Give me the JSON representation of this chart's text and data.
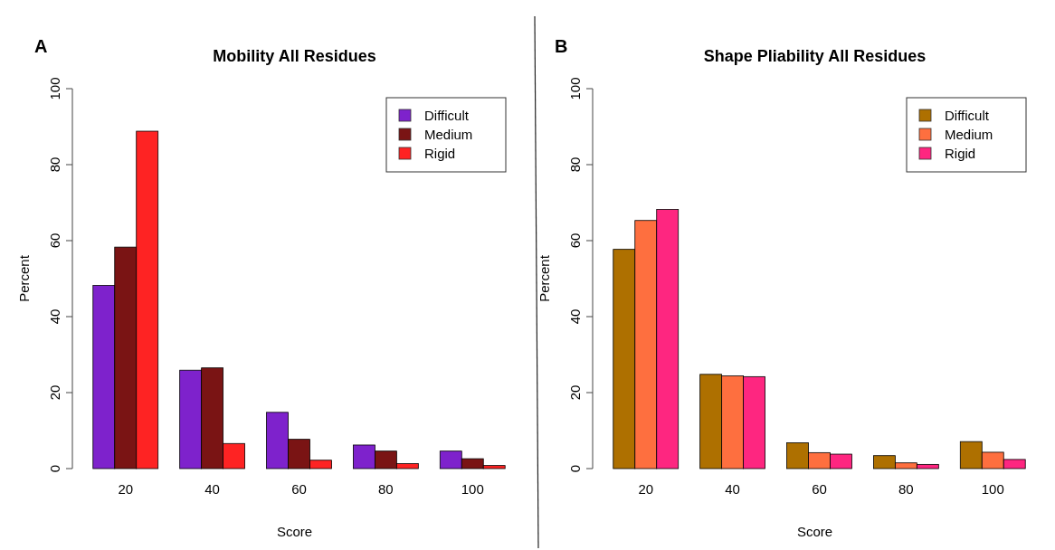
{
  "chart_data": [
    {
      "type": "bar",
      "title": "Mobility All Residues",
      "xlabel": "Score",
      "ylabel": "Percent",
      "annotations": [
        "A"
      ],
      "categories": [
        "20",
        "40",
        "60",
        "80",
        "100"
      ],
      "ylim": [
        0,
        100
      ],
      "yticks": [
        0,
        20,
        40,
        60,
        80,
        100
      ],
      "legend": "top right",
      "series": [
        {
          "name": "Difficult",
          "color": "#7e22cc",
          "values": [
            48.2,
            25.9,
            14.8,
            6.2,
            4.6
          ]
        },
        {
          "name": "Medium",
          "color": "#7a1414",
          "values": [
            58.3,
            26.5,
            7.7,
            4.6,
            2.6
          ]
        },
        {
          "name": "Rigid",
          "color": "#fe2323",
          "values": [
            88.8,
            6.6,
            2.2,
            1.3,
            0.8
          ]
        }
      ]
    },
    {
      "type": "bar",
      "title": "Shape Pliability All Residues",
      "xlabel": "Score",
      "ylabel": "Percent",
      "annotations": [
        "B"
      ],
      "categories": [
        "20",
        "40",
        "60",
        "80",
        "100"
      ],
      "ylim": [
        0,
        100
      ],
      "yticks": [
        0,
        20,
        40,
        60,
        80,
        100
      ],
      "legend": "top right",
      "series": [
        {
          "name": "Difficult",
          "color": "#ae7000",
          "values": [
            57.7,
            24.8,
            6.8,
            3.4,
            7.1
          ]
        },
        {
          "name": "Medium",
          "color": "#fe6f3f",
          "values": [
            65.3,
            24.4,
            4.2,
            1.5,
            4.3
          ]
        },
        {
          "name": "Rigid",
          "color": "#fe2680",
          "values": [
            68.2,
            24.2,
            3.8,
            1.1,
            2.4
          ]
        }
      ]
    }
  ]
}
